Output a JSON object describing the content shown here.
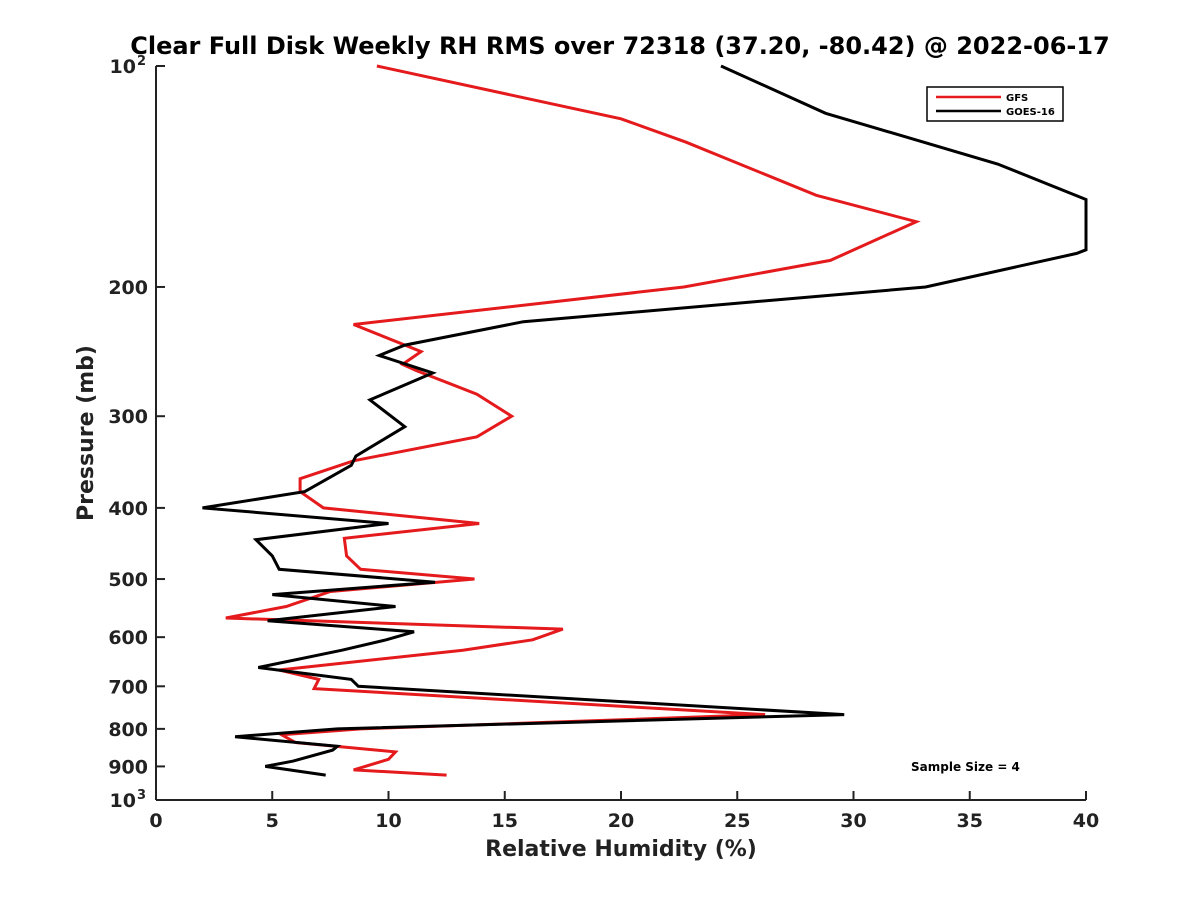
{
  "chart_data": {
    "type": "line",
    "title": "Clear Full Disk Weekly RH RMS over 72318 (37.20, -80.42) @ 2022-06-17",
    "xlabel": "Relative Humidity (%)",
    "ylabel": "Pressure (mb)",
    "xlim": [
      0,
      40
    ],
    "ylim": [
      100,
      1000
    ],
    "y_scale": "log",
    "y_reversed": true,
    "grid": false,
    "legend_position": "top-right",
    "x_ticks": [
      0,
      5,
      10,
      15,
      20,
      25,
      30,
      35,
      40
    ],
    "y_ticks": [
      {
        "value": 100,
        "label": "10",
        "sup": "2"
      },
      {
        "value": 200,
        "label": "200",
        "sup": ""
      },
      {
        "value": 300,
        "label": "300",
        "sup": ""
      },
      {
        "value": 400,
        "label": "400",
        "sup": ""
      },
      {
        "value": 500,
        "label": "500",
        "sup": ""
      },
      {
        "value": 600,
        "label": "600",
        "sup": ""
      },
      {
        "value": 700,
        "label": "700",
        "sup": ""
      },
      {
        "value": 800,
        "label": "800",
        "sup": ""
      },
      {
        "value": 900,
        "label": "900",
        "sup": ""
      },
      {
        "value": 1000,
        "label": "10",
        "sup": "3"
      }
    ],
    "annotation": "Sample Size = 4",
    "series": [
      {
        "name": "GFS",
        "color": "#e41a1c",
        "points": [
          [
            9.5,
            100
          ],
          [
            20.0,
            118
          ],
          [
            22.8,
            127
          ],
          [
            28.4,
            150
          ],
          [
            32.7,
            163
          ],
          [
            29.0,
            184
          ],
          [
            22.7,
            200
          ],
          [
            8.5,
            225
          ],
          [
            11.4,
            245
          ],
          [
            10.6,
            255
          ],
          [
            11.2,
            260
          ],
          [
            13.8,
            280
          ],
          [
            15.3,
            300
          ],
          [
            13.8,
            320
          ],
          [
            8.5,
            345
          ],
          [
            6.2,
            365
          ],
          [
            6.2,
            380
          ],
          [
            7.2,
            400
          ],
          [
            13.9,
            420
          ],
          [
            8.1,
            440
          ],
          [
            8.2,
            465
          ],
          [
            8.8,
            485
          ],
          [
            13.7,
            500
          ],
          [
            7.5,
            520
          ],
          [
            5.6,
            545
          ],
          [
            3.0,
            565
          ],
          [
            17.5,
            585
          ],
          [
            16.2,
            605
          ],
          [
            13.2,
            625
          ],
          [
            5.3,
            665
          ],
          [
            7.0,
            685
          ],
          [
            6.8,
            705
          ],
          [
            26.2,
            765
          ],
          [
            16.3,
            785
          ],
          [
            8.8,
            800
          ],
          [
            5.4,
            815
          ],
          [
            6.0,
            835
          ],
          [
            10.3,
            860
          ],
          [
            10.0,
            880
          ],
          [
            8.5,
            910
          ],
          [
            12.5,
            925
          ]
        ]
      },
      {
        "name": "GOES-16",
        "color": "#000000",
        "points": [
          [
            24.3,
            100
          ],
          [
            28.8,
            116
          ],
          [
            36.2,
            136
          ],
          [
            40.0,
            152
          ],
          [
            40.0,
            178
          ],
          [
            39.6,
            180
          ],
          [
            33.1,
            200
          ],
          [
            15.8,
            223
          ],
          [
            10.7,
            240
          ],
          [
            9.6,
            248
          ],
          [
            11.9,
            262
          ],
          [
            9.2,
            285
          ],
          [
            10.7,
            310
          ],
          [
            8.6,
            340
          ],
          [
            8.4,
            350
          ],
          [
            6.4,
            380
          ],
          [
            2.0,
            400
          ],
          [
            10.0,
            420
          ],
          [
            4.3,
            442
          ],
          [
            5.0,
            465
          ],
          [
            5.3,
            485
          ],
          [
            12.0,
            505
          ],
          [
            5.0,
            525
          ],
          [
            10.3,
            545
          ],
          [
            4.8,
            570
          ],
          [
            11.1,
            590
          ],
          [
            9.9,
            605
          ],
          [
            8.0,
            625
          ],
          [
            4.4,
            660
          ],
          [
            8.4,
            685
          ],
          [
            8.7,
            700
          ],
          [
            29.6,
            765
          ],
          [
            7.8,
            800
          ],
          [
            3.4,
            820
          ],
          [
            7.8,
            845
          ],
          [
            7.6,
            855
          ],
          [
            5.9,
            885
          ],
          [
            4.7,
            900
          ],
          [
            7.3,
            925
          ]
        ]
      }
    ]
  }
}
